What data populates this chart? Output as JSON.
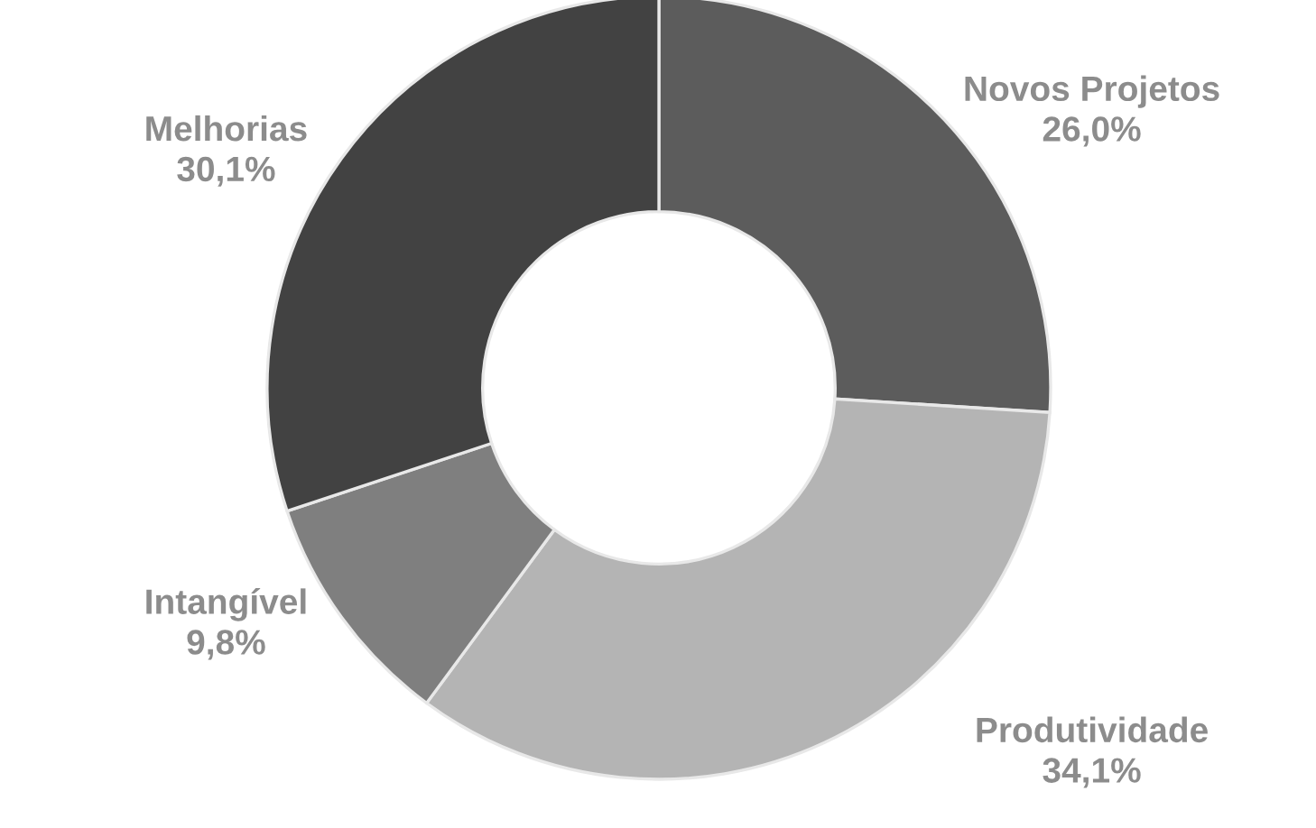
{
  "chart_data": {
    "type": "donut",
    "categories": [
      "Novos Projetos",
      "Produtividade",
      "Intangível",
      "Melhorias"
    ],
    "values": [
      26.0,
      34.1,
      9.8,
      30.1
    ],
    "value_labels": [
      "26,0%",
      "34,1%",
      "9,8%",
      "30,1%"
    ],
    "colors": [
      "#5c5c5c",
      "#b4b4b4",
      "#7f7f7f",
      "#424242"
    ],
    "legend": false
  }
}
